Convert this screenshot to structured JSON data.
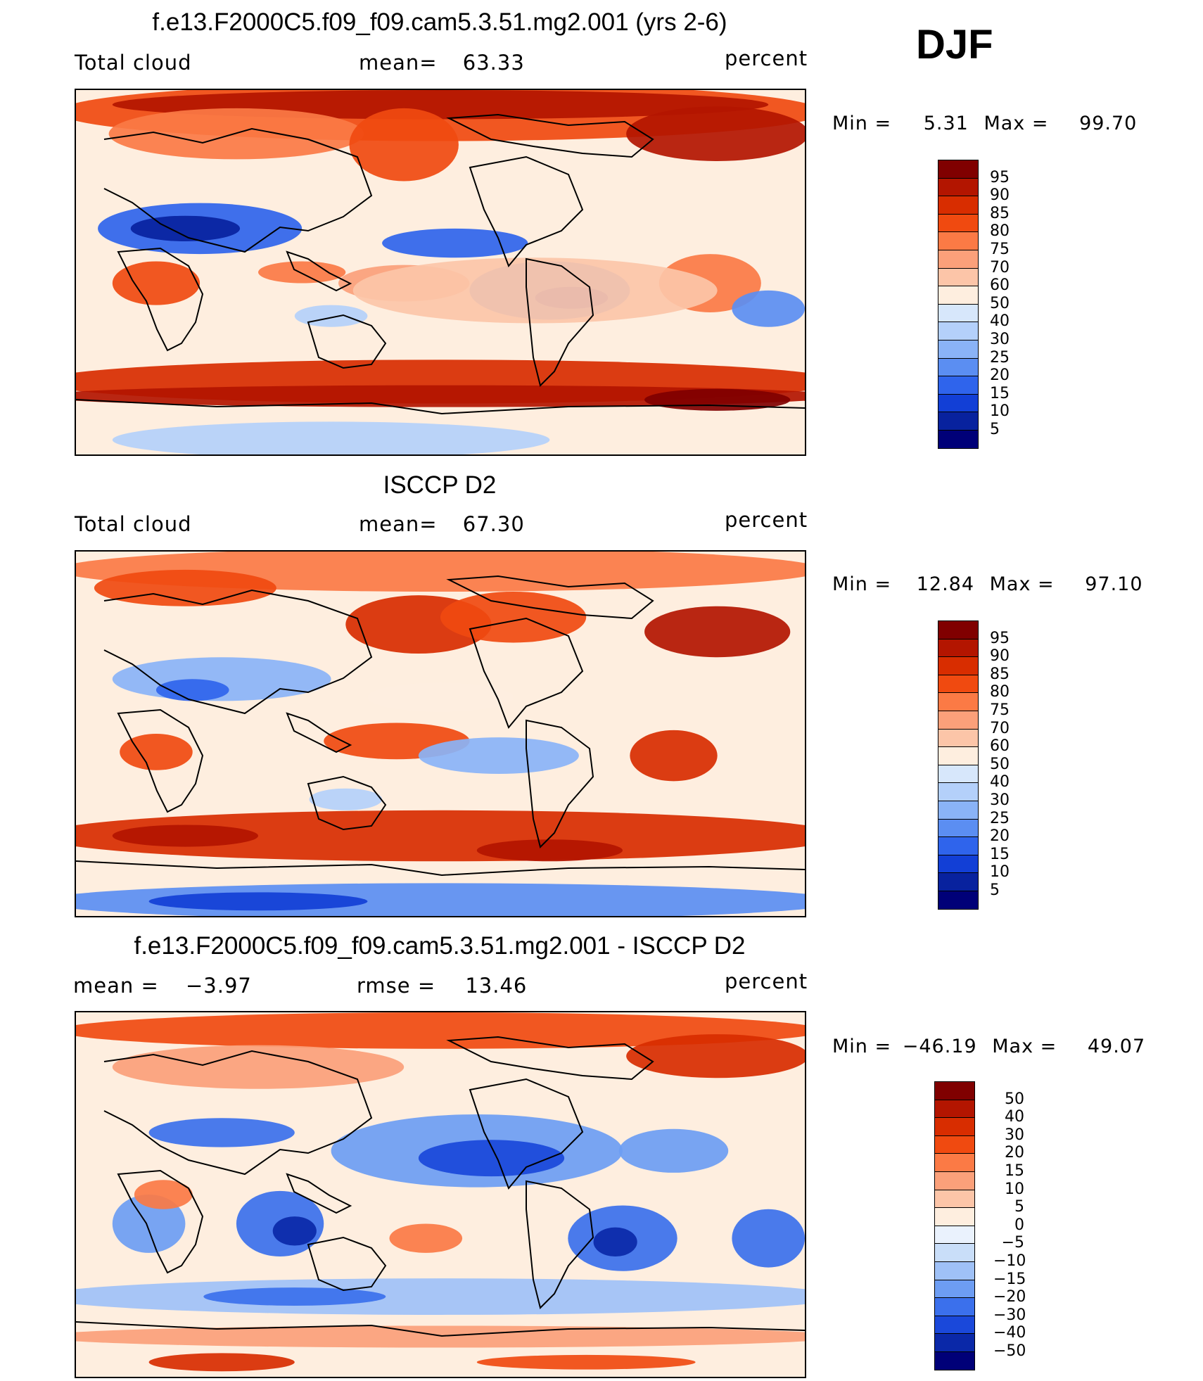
{
  "season": "DJF",
  "units": "percent",
  "panels": [
    {
      "id": "model",
      "title": "f.e13.F2000C5.f09_f09.cam5.3.51.mg2.001 (yrs 2-6)",
      "left_label": "Total cloud",
      "stat_label": "mean=",
      "stat_value": "63.33",
      "units": "percent",
      "min_label": "Min =",
      "min": "5.31",
      "max_label": "Max =",
      "max": "99.70",
      "colorbar": {
        "levels": [
          "95",
          "90",
          "85",
          "80",
          "75",
          "70",
          "60",
          "50",
          "40",
          "30",
          "25",
          "20",
          "15",
          "10",
          "5"
        ],
        "colors": [
          "#800000",
          "#b31500",
          "#d82d00",
          "#f04a10",
          "#fb7a45",
          "#fba07a",
          "#fcc5a8",
          "#feeedf",
          "#d7e7fb",
          "#b4d0fa",
          "#8ab3f7",
          "#5b8ef2",
          "#2f64ec",
          "#123fd6",
          "#08229e",
          "#000078"
        ]
      }
    },
    {
      "id": "obs",
      "title": "ISCCP D2",
      "left_label": "Total cloud",
      "stat_label": "mean=",
      "stat_value": "67.30",
      "units": "percent",
      "min_label": "Min =",
      "min": "12.84",
      "max_label": "Max =",
      "max": "97.10",
      "colorbar": {
        "levels": [
          "95",
          "90",
          "85",
          "80",
          "75",
          "70",
          "60",
          "50",
          "40",
          "30",
          "25",
          "20",
          "15",
          "10",
          "5"
        ],
        "colors": [
          "#800000",
          "#b31500",
          "#d82d00",
          "#f04a10",
          "#fb7a45",
          "#fba07a",
          "#fcc5a8",
          "#feeedf",
          "#d7e7fb",
          "#b4d0fa",
          "#8ab3f7",
          "#5b8ef2",
          "#2f64ec",
          "#123fd6",
          "#08229e",
          "#000078"
        ]
      }
    },
    {
      "id": "diff",
      "title": "f.e13.F2000C5.f09_f09.cam5.3.51.mg2.001 - ISCCP D2",
      "left_label": "mean =",
      "left_value": "−3.97",
      "stat_label": "rmse =",
      "stat_value": "13.46",
      "units": "percent",
      "min_label": "Min =",
      "min": "−46.19",
      "max_label": "Max =",
      "max": "49.07",
      "colorbar": {
        "levels": [
          "50",
          "40",
          "30",
          "20",
          "15",
          "10",
          "5",
          "0",
          "−5",
          "−10",
          "−15",
          "−20",
          "−30",
          "−40",
          "−50"
        ],
        "colors": [
          "#800000",
          "#b31500",
          "#d82d00",
          "#f04a10",
          "#fb7a45",
          "#fba07a",
          "#fcc5a8",
          "#feeedf",
          "#eaf2fd",
          "#c9def9",
          "#9fc1f7",
          "#6d9df3",
          "#3b70ec",
          "#1a48da",
          "#0a28a8",
          "#000078"
        ]
      }
    }
  ]
}
